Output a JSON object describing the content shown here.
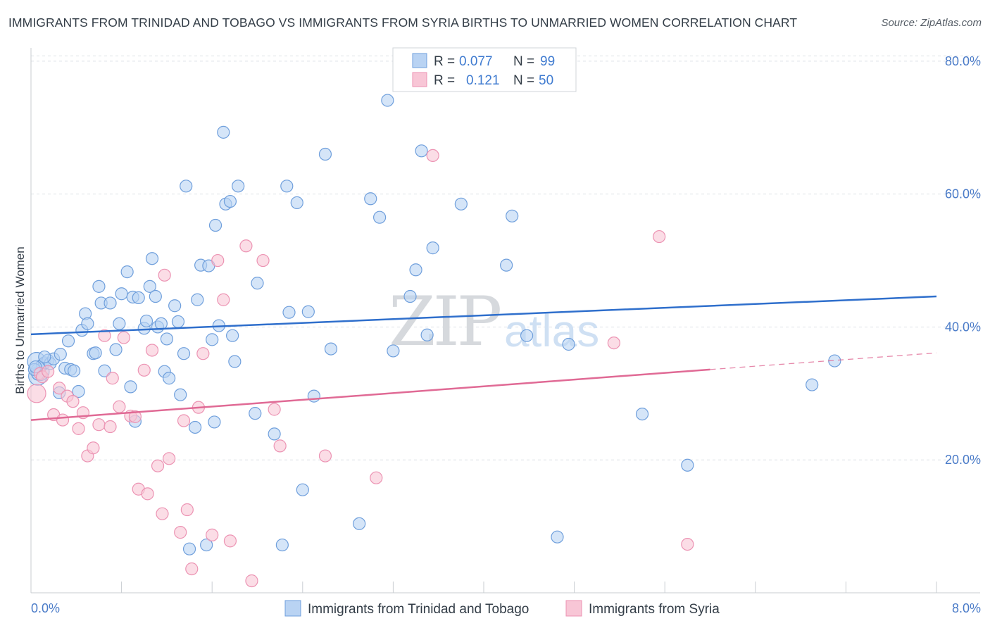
{
  "title": "IMMIGRANTS FROM TRINIDAD AND TOBAGO VS IMMIGRANTS FROM SYRIA BIRTHS TO UNMARRIED WOMEN CORRELATION CHART",
  "source": "Source: ZipAtlas.com",
  "watermark": {
    "zip": "ZIP",
    "atlas": "atlas"
  },
  "legend": {
    "r_label": "R =",
    "n_label": "N =",
    "rows": [
      {
        "r": "0.077",
        "n": "99"
      },
      {
        "r": "0.121",
        "n": "50"
      }
    ]
  },
  "colors": {
    "blue": "#2f6fcc",
    "blue_fill": "#b9d3f3",
    "blue_stroke": "#6f9fdc",
    "pink": "#e06a95",
    "pink_fill": "#f8c6d6",
    "pink_stroke": "#ec93b3"
  },
  "chart_data": {
    "type": "scatter",
    "title": "IMMIGRANTS FROM TRINIDAD AND TOBAGO VS IMMIGRANTS FROM SYRIA BIRTHS TO UNMARRIED WOMEN CORRELATION CHART",
    "xlabel": "",
    "ylabel": "Births to Unmarried Women",
    "xlim": [
      0,
      8
    ],
    "ylim": [
      0,
      82
    ],
    "x_ticks": [
      "0.0%",
      "8.0%"
    ],
    "y_ticks": [
      {
        "value": 20,
        "label": "20.0%"
      },
      {
        "value": 40,
        "label": "40.0%"
      },
      {
        "value": 60,
        "label": "60.0%"
      },
      {
        "value": 80,
        "label": "80.0%"
      }
    ],
    "series": [
      {
        "name": "Immigrants from Trinidad and Tobago",
        "color": "#2f6fcc",
        "R": 0.077,
        "N": 99,
        "trend": [
          [
            0,
            38.9
          ],
          [
            8,
            44.6
          ]
        ],
        "points": [
          [
            0.05,
            34.8
          ],
          [
            0.06,
            32.6
          ],
          [
            0.08,
            33.3
          ],
          [
            0.1,
            34.3
          ],
          [
            0.12,
            34.6
          ],
          [
            0.15,
            35.0
          ],
          [
            0.17,
            34.5
          ],
          [
            0.2,
            35.2
          ],
          [
            0.12,
            35.5
          ],
          [
            0.25,
            30.1
          ],
          [
            0.26,
            35.9
          ],
          [
            0.3,
            33.8
          ],
          [
            0.33,
            37.9
          ],
          [
            0.35,
            33.6
          ],
          [
            0.38,
            33.4
          ],
          [
            0.42,
            30.3
          ],
          [
            0.45,
            39.5
          ],
          [
            0.48,
            42.0
          ],
          [
            0.5,
            40.5
          ],
          [
            0.55,
            36.0
          ],
          [
            0.57,
            36.1
          ],
          [
            0.6,
            46.1
          ],
          [
            0.62,
            43.6
          ],
          [
            0.65,
            33.4
          ],
          [
            0.7,
            43.6
          ],
          [
            0.75,
            36.6
          ],
          [
            0.78,
            40.5
          ],
          [
            0.8,
            45.0
          ],
          [
            0.85,
            48.3
          ],
          [
            0.88,
            31.0
          ],
          [
            0.9,
            44.5
          ],
          [
            0.92,
            25.8
          ],
          [
            0.95,
            44.4
          ],
          [
            1.0,
            39.8
          ],
          [
            1.02,
            40.9
          ],
          [
            1.05,
            46.1
          ],
          [
            1.07,
            50.3
          ],
          [
            1.1,
            44.6
          ],
          [
            1.12,
            40.0
          ],
          [
            1.15,
            40.5
          ],
          [
            1.18,
            33.3
          ],
          [
            1.2,
            38.2
          ],
          [
            1.22,
            32.3
          ],
          [
            1.27,
            43.2
          ],
          [
            1.3,
            40.8
          ],
          [
            1.32,
            29.8
          ],
          [
            1.35,
            36.0
          ],
          [
            1.37,
            61.2
          ],
          [
            1.4,
            6.6
          ],
          [
            1.45,
            24.9
          ],
          [
            1.47,
            44.1
          ],
          [
            1.5,
            49.3
          ],
          [
            1.55,
            7.2
          ],
          [
            1.57,
            49.2
          ],
          [
            1.6,
            38.1
          ],
          [
            1.62,
            25.7
          ],
          [
            1.63,
            55.3
          ],
          [
            1.66,
            40.2
          ],
          [
            1.7,
            69.3
          ],
          [
            1.72,
            58.5
          ],
          [
            1.76,
            58.9
          ],
          [
            1.78,
            38.7
          ],
          [
            1.8,
            34.8
          ],
          [
            1.83,
            61.2
          ],
          [
            1.98,
            27.0
          ],
          [
            2.0,
            46.6
          ],
          [
            2.15,
            23.9
          ],
          [
            2.22,
            7.2
          ],
          [
            2.26,
            61.2
          ],
          [
            2.28,
            42.2
          ],
          [
            2.35,
            58.7
          ],
          [
            2.4,
            15.5
          ],
          [
            2.45,
            42.3
          ],
          [
            2.5,
            29.6
          ],
          [
            2.6,
            66.0
          ],
          [
            2.65,
            36.7
          ],
          [
            2.9,
            10.4
          ],
          [
            3.0,
            59.3
          ],
          [
            3.08,
            56.5
          ],
          [
            3.15,
            74.1
          ],
          [
            3.2,
            36.4
          ],
          [
            3.35,
            44.6
          ],
          [
            3.4,
            48.6
          ],
          [
            3.45,
            66.5
          ],
          [
            3.5,
            38.8
          ],
          [
            3.55,
            51.9
          ],
          [
            3.8,
            58.5
          ],
          [
            4.2,
            49.3
          ],
          [
            4.25,
            56.7
          ],
          [
            4.38,
            38.7
          ],
          [
            4.65,
            8.4
          ],
          [
            4.75,
            37.4
          ],
          [
            5.4,
            26.9
          ],
          [
            5.8,
            19.2
          ],
          [
            6.9,
            31.3
          ],
          [
            7.1,
            34.9
          ],
          [
            0.06,
            32.9
          ],
          [
            0.03,
            33.6
          ],
          [
            0.04,
            34.0
          ]
        ]
      },
      {
        "name": "Immigrants from Syria",
        "color": "#e06a95",
        "R": 0.121,
        "N": 50,
        "trend": [
          [
            0,
            26.0
          ],
          [
            6,
            33.6
          ]
        ],
        "trend_dashed": [
          [
            6,
            33.6
          ],
          [
            8,
            36.1
          ]
        ],
        "points": [
          [
            0.05,
            30.0
          ],
          [
            0.08,
            33.0
          ],
          [
            0.1,
            32.5
          ],
          [
            0.15,
            33.3
          ],
          [
            0.2,
            26.8
          ],
          [
            0.25,
            30.8
          ],
          [
            0.28,
            26.0
          ],
          [
            0.32,
            29.6
          ],
          [
            0.37,
            28.8
          ],
          [
            0.42,
            24.7
          ],
          [
            0.46,
            27.1
          ],
          [
            0.5,
            20.6
          ],
          [
            0.55,
            21.8
          ],
          [
            0.6,
            25.3
          ],
          [
            0.65,
            38.7
          ],
          [
            0.7,
            25.0
          ],
          [
            0.72,
            32.3
          ],
          [
            0.78,
            28.0
          ],
          [
            0.82,
            38.4
          ],
          [
            0.88,
            26.6
          ],
          [
            0.92,
            26.5
          ],
          [
            0.95,
            15.6
          ],
          [
            1.0,
            33.5
          ],
          [
            1.03,
            14.9
          ],
          [
            1.07,
            36.5
          ],
          [
            1.12,
            19.1
          ],
          [
            1.16,
            11.9
          ],
          [
            1.18,
            47.8
          ],
          [
            1.22,
            20.2
          ],
          [
            1.32,
            9.1
          ],
          [
            1.35,
            25.9
          ],
          [
            1.38,
            12.5
          ],
          [
            1.42,
            3.6
          ],
          [
            1.48,
            27.9
          ],
          [
            1.52,
            36.0
          ],
          [
            1.6,
            8.7
          ],
          [
            1.65,
            50.0
          ],
          [
            1.7,
            44.1
          ],
          [
            1.76,
            7.8
          ],
          [
            1.9,
            52.2
          ],
          [
            1.95,
            1.8
          ],
          [
            2.05,
            50.0
          ],
          [
            2.15,
            27.6
          ],
          [
            2.2,
            22.1
          ],
          [
            2.6,
            20.6
          ],
          [
            3.05,
            17.3
          ],
          [
            3.55,
            65.8
          ],
          [
            5.15,
            37.6
          ],
          [
            5.55,
            53.6
          ],
          [
            5.8,
            7.3
          ]
        ]
      }
    ]
  }
}
